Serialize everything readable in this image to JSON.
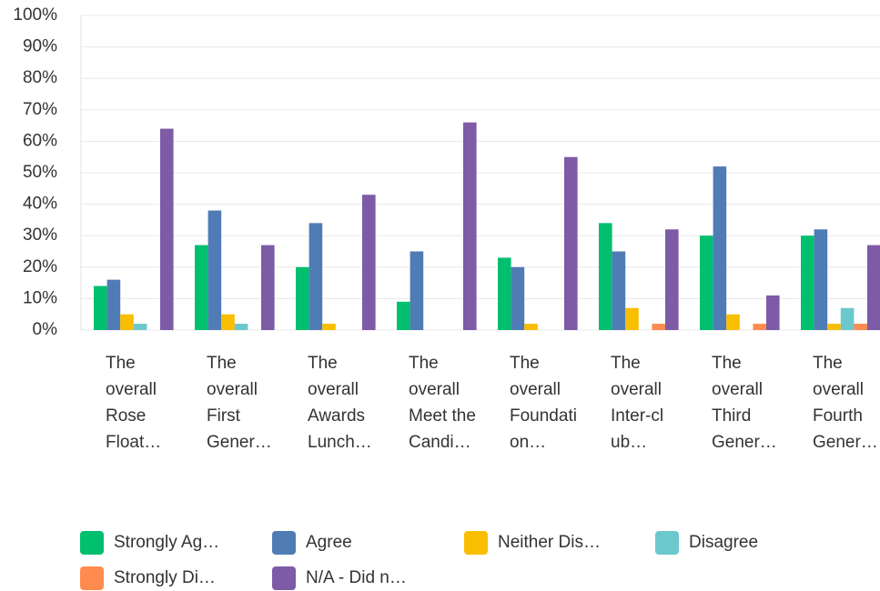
{
  "chart_data": {
    "type": "bar",
    "categories": [
      [
        "The",
        "overall",
        "Rose",
        "Float…"
      ],
      [
        "The",
        "overall",
        "First",
        "Gener…"
      ],
      [
        "The",
        "overall",
        "Awards",
        "Lunch…"
      ],
      [
        "The",
        "overall",
        "Meet the",
        "Candi…"
      ],
      [
        "The",
        "overall",
        "Foundati",
        "on…"
      ],
      [
        "The",
        "overall",
        "Inter-cl",
        "ub…"
      ],
      [
        "The",
        "overall",
        "Third",
        "Gener…"
      ],
      [
        "The",
        "overall",
        "Fourth",
        "Gener…"
      ]
    ],
    "series": [
      {
        "name": "Strongly Ag…",
        "color": "#00bf6f",
        "values": [
          14,
          27,
          20,
          9,
          23,
          34,
          30,
          30
        ]
      },
      {
        "name": "Agree",
        "color": "#507cb6",
        "values": [
          16,
          38,
          34,
          25,
          20,
          25,
          52,
          32
        ]
      },
      {
        "name": "Neither Dis…",
        "color": "#f9be00",
        "values": [
          5,
          5,
          2,
          0,
          2,
          7,
          5,
          2
        ]
      },
      {
        "name": "Disagree",
        "color": "#6bc8cd",
        "values": [
          2,
          2,
          0,
          0,
          0,
          0,
          0,
          7
        ]
      },
      {
        "name": "Strongly Di…",
        "color": "#ff8b4f",
        "values": [
          0,
          0,
          0,
          0,
          0,
          2,
          2,
          2
        ]
      },
      {
        "name": "N/A - Did n…",
        "color": "#7d5ba6",
        "values": [
          64,
          27,
          43,
          66,
          55,
          32,
          11,
          27
        ]
      }
    ],
    "ylim": [
      0,
      100
    ],
    "yticks": [
      {
        "value": 0,
        "label": "0%"
      },
      {
        "value": 10,
        "label": "10%"
      },
      {
        "value": 20,
        "label": "20%"
      },
      {
        "value": 30,
        "label": "30%"
      },
      {
        "value": 40,
        "label": "40%"
      },
      {
        "value": 50,
        "label": "50%"
      },
      {
        "value": 60,
        "label": "60%"
      },
      {
        "value": 70,
        "label": "70%"
      },
      {
        "value": 80,
        "label": "80%"
      },
      {
        "value": 90,
        "label": "90%"
      },
      {
        "value": 100,
        "label": "100%"
      }
    ],
    "grid": true
  }
}
